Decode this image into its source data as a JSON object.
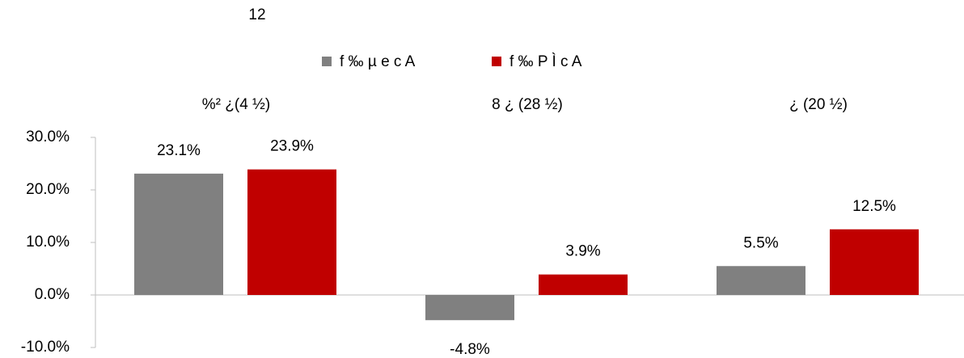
{
  "chart_data": {
    "type": "bar",
    "title": "12",
    "categories": [
      "%² ¿(4 ½)",
      "8 ¿ (28 ½)",
      "¿  (20 ½)"
    ],
    "series": [
      {
        "name": "f ‰ µ e c A",
        "color": "#808080",
        "values": [
          23.1,
          -4.8,
          5.5
        ],
        "value_labels": [
          "23.1%",
          "-4.8%",
          "5.5%"
        ]
      },
      {
        "name": "f ‰ P Ì c A",
        "color": "#c00000",
        "values": [
          23.9,
          3.9,
          12.5
        ],
        "value_labels": [
          "23.9%",
          "3.9%",
          "12.5%"
        ]
      }
    ],
    "ylim": [
      -10,
      30
    ],
    "yticks": [
      {
        "value": -10,
        "label": "-10.0%"
      },
      {
        "value": 0,
        "label": "0.0%"
      },
      {
        "value": 10,
        "label": "10.0%"
      },
      {
        "value": 20,
        "label": "20.0%"
      },
      {
        "value": 30,
        "label": "30.0%"
      }
    ],
    "legend": "top"
  }
}
